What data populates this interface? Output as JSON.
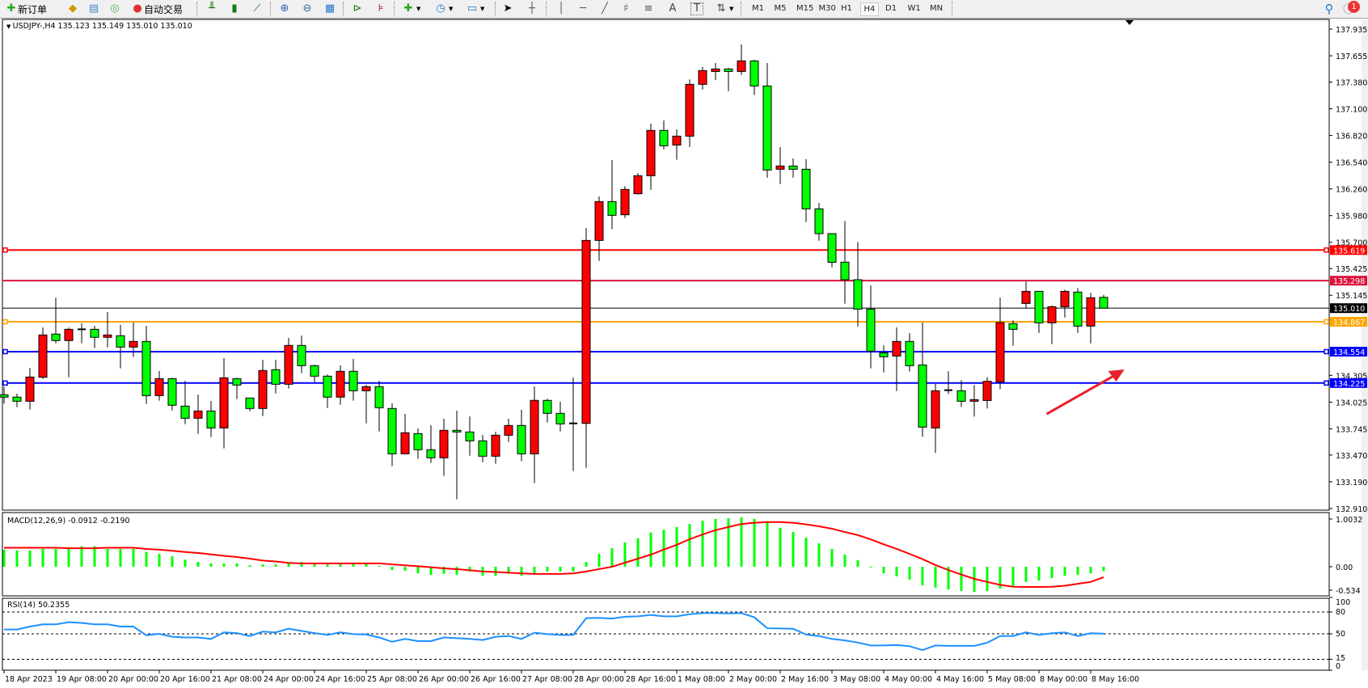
{
  "toolbar": {
    "new_order": "新订单",
    "auto_trading": "自动交易",
    "timeframes": [
      "M1",
      "M5",
      "M15",
      "M30",
      "H1",
      "H4",
      "D1",
      "W1",
      "MN"
    ],
    "selected_timeframe": "H4",
    "notification_count": "1",
    "icons": [
      "new-order-icon",
      "market-watch-icon",
      "data-window-icon",
      "signals-icon",
      "auto-trading-icon",
      "bar-chart-icon",
      "candlestick-icon",
      "line-chart-icon",
      "zoom-in-icon",
      "zoom-out-icon",
      "tile-windows-icon",
      "autoscroll-icon",
      "chart-shift-icon",
      "indicators-icon",
      "periods-icon",
      "templates-icon",
      "cursor-icon",
      "crosshair-icon",
      "vertical-line-icon",
      "horizontal-line-icon",
      "trendline-icon",
      "fibonacci-icon",
      "fibonacci-fan-icon",
      "text-icon",
      "text-label-icon",
      "arrows-icon",
      "search-icon",
      "notification-icon"
    ],
    "glyphs": {
      "text": "A",
      "label": "T"
    }
  },
  "chart": {
    "title": "USDJPY-,H4  135.123 135.149 135.010 135.010",
    "macd_label": "MACD(12,26,9) -0.0912 -0.2190",
    "rsi_label": "RSI(14) 50.2355"
  },
  "chart_data": {
    "type": "candlestick",
    "symbol": "USDJPY-",
    "timeframe": "H4",
    "colors": {
      "bull": "#ff0000",
      "bear": "#00ff00",
      "outline": "#000000",
      "macd_hist": "#00ff00",
      "signal": "#ff0000",
      "rsi": "#1e90ff"
    },
    "price_range": [
      132.91,
      137.935
    ],
    "price_ticks": [
      "137.935",
      "137.655",
      "137.380",
      "137.100",
      "136.820",
      "136.540",
      "136.260",
      "135.980",
      "135.700",
      "135.425",
      "135.145",
      "134.305",
      "134.025",
      "133.745",
      "133.470",
      "133.190",
      "132.910"
    ],
    "hlines": [
      {
        "price": "135.619",
        "color": "#ff0000",
        "handle": true
      },
      {
        "price": "135.298",
        "color": "#dc143c",
        "handle": false
      },
      {
        "price": "135.010",
        "color": "#000000",
        "handle": false
      },
      {
        "price": "134.867",
        "color": "#ffa500",
        "handle": true
      },
      {
        "price": "134.554",
        "color": "#0000ff",
        "handle": true
      },
      {
        "price": "134.225",
        "color": "#0000ff",
        "handle": true
      }
    ],
    "time_labels": [
      "18 Apr 2023",
      "19 Apr 08:00",
      "20 Apr 00:00",
      "20 Apr 16:00",
      "21 Apr 08:00",
      "24 Apr 00:00",
      "24 Apr 16:00",
      "25 Apr 08:00",
      "26 Apr 00:00",
      "26 Apr 16:00",
      "27 Apr 08:00",
      "28 Apr 00:00",
      "28 Apr 16:00",
      "1 May 08:00",
      "2 May 00:00",
      "2 May 16:00",
      "3 May 08:00",
      "4 May 00:00",
      "4 May 16:00",
      "5 May 08:00",
      "8 May 00:00",
      "8 May 16:00"
    ],
    "ohlc": [
      [
        134.102,
        134.187,
        134.009,
        134.077
      ],
      [
        134.077,
        134.113,
        133.972,
        134.034
      ],
      [
        134.034,
        134.384,
        133.947,
        134.288
      ],
      [
        134.286,
        134.808,
        134.269,
        134.729
      ],
      [
        134.738,
        135.119,
        134.642,
        134.67
      ],
      [
        134.67,
        134.808,
        134.286,
        134.788
      ],
      [
        134.788,
        134.851,
        134.642,
        134.788
      ],
      [
        134.788,
        134.825,
        134.591,
        134.704
      ],
      [
        134.704,
        134.969,
        134.599,
        134.729
      ],
      [
        134.721,
        134.834,
        134.379,
        134.602
      ],
      [
        134.602,
        134.859,
        134.497,
        134.661
      ],
      [
        134.661,
        134.825,
        134.006,
        134.093
      ],
      [
        134.093,
        134.351,
        134.04,
        134.271
      ],
      [
        134.271,
        134.28,
        133.938,
        133.992
      ],
      [
        133.983,
        134.249,
        133.794,
        133.856
      ],
      [
        133.856,
        134.105,
        133.692,
        133.932
      ],
      [
        133.932,
        134.037,
        133.658,
        133.754
      ],
      [
        133.754,
        134.486,
        133.54,
        134.28
      ],
      [
        134.271,
        134.28,
        134.057,
        134.204
      ],
      [
        134.068,
        134.068,
        133.93,
        133.958
      ],
      [
        133.958,
        134.469,
        133.879,
        134.356
      ],
      [
        134.365,
        134.469,
        134.116,
        134.212
      ],
      [
        134.212,
        134.698,
        134.167,
        134.619
      ],
      [
        134.619,
        134.723,
        134.328,
        134.407
      ],
      [
        134.407,
        134.418,
        134.235,
        134.297
      ],
      [
        134.297,
        134.314,
        133.964,
        134.077
      ],
      [
        134.077,
        134.41,
        133.997,
        134.348
      ],
      [
        134.348,
        134.478,
        134.04,
        134.144
      ],
      [
        134.144,
        134.206,
        133.803,
        134.187
      ],
      [
        134.187,
        134.249,
        133.718,
        133.966
      ],
      [
        133.958,
        134.012,
        133.353,
        133.483
      ],
      [
        133.483,
        133.901,
        133.483,
        133.704
      ],
      [
        133.695,
        133.749,
        133.43,
        133.526
      ],
      [
        133.526,
        133.783,
        133.387,
        133.441
      ],
      [
        133.441,
        133.851,
        133.252,
        133.729
      ],
      [
        133.729,
        133.935,
        133.006,
        133.712
      ],
      [
        133.712,
        133.876,
        133.463,
        133.619
      ],
      [
        133.619,
        133.681,
        133.396,
        133.458
      ],
      [
        133.458,
        133.715,
        133.379,
        133.678
      ],
      [
        133.678,
        133.851,
        133.608,
        133.78
      ],
      [
        133.78,
        133.944,
        133.404,
        133.483
      ],
      [
        133.483,
        134.189,
        133.175,
        134.043
      ],
      [
        134.043,
        134.06,
        133.811,
        133.907
      ],
      [
        133.907,
        134.028,
        133.718,
        133.797
      ],
      [
        133.802,
        134.283,
        133.303,
        133.802
      ],
      [
        133.802,
        135.85,
        133.336,
        135.72
      ],
      [
        135.72,
        136.181,
        135.506,
        136.127
      ],
      [
        136.127,
        136.562,
        135.836,
        135.983
      ],
      [
        135.989,
        136.288,
        135.955,
        136.254
      ],
      [
        136.209,
        136.426,
        136.2,
        136.398
      ],
      [
        136.398,
        136.943,
        136.251,
        136.873
      ],
      [
        136.873,
        136.977,
        136.675,
        136.712
      ],
      [
        136.72,
        136.884,
        136.565,
        136.813
      ],
      [
        136.813,
        137.407,
        136.7,
        137.356
      ],
      [
        137.356,
        137.537,
        137.302,
        137.5
      ],
      [
        137.491,
        137.579,
        137.401,
        137.517
      ],
      [
        137.517,
        137.528,
        137.285,
        137.491
      ],
      [
        137.491,
        137.774,
        137.455,
        137.602
      ],
      [
        137.602,
        137.613,
        137.243,
        137.339
      ],
      [
        137.339,
        137.579,
        136.378,
        136.458
      ],
      [
        136.466,
        136.698,
        136.311,
        136.5
      ],
      [
        136.5,
        136.579,
        136.378,
        136.466
      ],
      [
        136.466,
        136.571,
        135.912,
        136.051
      ],
      [
        136.051,
        136.113,
        135.717,
        135.791
      ],
      [
        135.791,
        135.791,
        135.438,
        135.491
      ],
      [
        135.492,
        135.924,
        135.057,
        135.308
      ],
      [
        135.308,
        135.703,
        134.819,
        135.0
      ],
      [
        135.0,
        135.246,
        134.379,
        134.559
      ],
      [
        134.542,
        134.619,
        134.336,
        134.5
      ],
      [
        134.508,
        134.808,
        134.141,
        134.661
      ],
      [
        134.661,
        134.749,
        134.345,
        134.407
      ],
      [
        134.415,
        134.859,
        133.661,
        133.763
      ],
      [
        133.754,
        134.215,
        133.492,
        134.144
      ],
      [
        134.15,
        134.348,
        134.11,
        134.15
      ],
      [
        134.144,
        134.254,
        133.975,
        134.034
      ],
      [
        134.034,
        134.203,
        133.873,
        134.051
      ],
      [
        134.042,
        134.288,
        133.958,
        134.243
      ],
      [
        134.237,
        135.119,
        134.161,
        134.859
      ],
      [
        134.847,
        134.881,
        134.616,
        134.788
      ],
      [
        135.059,
        135.288,
        135.011,
        135.186
      ],
      [
        135.186,
        135.186,
        134.751,
        134.856
      ],
      [
        134.856,
        135.04,
        134.633,
        135.025
      ],
      [
        135.025,
        135.203,
        134.912,
        135.186
      ],
      [
        135.178,
        135.22,
        134.751,
        134.822
      ],
      [
        134.822,
        135.17,
        134.641,
        135.119
      ],
      [
        135.123,
        135.149,
        135.01,
        135.01
      ]
    ],
    "macd": {
      "range": [
        -0.534,
        1.0032
      ],
      "ticks": [
        "1.0032",
        "0.00",
        "-0.534"
      ],
      "hist": [
        0.36,
        0.34,
        0.34,
        0.375,
        0.375,
        0.41,
        0.43,
        0.43,
        0.375,
        0.375,
        0.375,
        0.31,
        0.27,
        0.22,
        0.15,
        0.1,
        0.07,
        0.07,
        0.07,
        0.03,
        0.05,
        0.05,
        0.085,
        0.1,
        0.07,
        0.07,
        0.07,
        0.07,
        0.07,
        0.02,
        -0.07,
        -0.085,
        -0.14,
        -0.17,
        -0.15,
        -0.17,
        -0.1,
        -0.19,
        -0.19,
        -0.14,
        -0.19,
        -0.14,
        -0.1,
        -0.1,
        -0.1,
        0.1,
        0.27,
        0.39,
        0.51,
        0.6,
        0.72,
        0.78,
        0.835,
        0.9,
        0.97,
        1.005,
        1.02,
        1.04,
        1.005,
        0.955,
        0.82,
        0.73,
        0.61,
        0.49,
        0.375,
        0.255,
        0.14,
        0.0,
        -0.14,
        -0.2,
        -0.27,
        -0.39,
        -0.44,
        -0.48,
        -0.51,
        -0.53,
        -0.51,
        -0.46,
        -0.41,
        -0.32,
        -0.29,
        -0.24,
        -0.19,
        -0.17,
        -0.14,
        -0.0912
      ],
      "signal": [
        0.4,
        0.4,
        0.4,
        0.4,
        0.4,
        0.39,
        0.39,
        0.39,
        0.4,
        0.4,
        0.4,
        0.375,
        0.36,
        0.335,
        0.31,
        0.29,
        0.26,
        0.23,
        0.205,
        0.17,
        0.13,
        0.11,
        0.08,
        0.07,
        0.07,
        0.07,
        0.07,
        0.07,
        0.07,
        0.07,
        0.05,
        0.03,
        0.01,
        -0.01,
        -0.035,
        -0.05,
        -0.075,
        -0.1,
        -0.11,
        -0.125,
        -0.14,
        -0.15,
        -0.15,
        -0.15,
        -0.14,
        -0.1,
        -0.05,
        0.0,
        0.085,
        0.17,
        0.255,
        0.36,
        0.46,
        0.58,
        0.68,
        0.77,
        0.835,
        0.9,
        0.925,
        0.94,
        0.94,
        0.925,
        0.89,
        0.85,
        0.8,
        0.73,
        0.665,
        0.575,
        0.47,
        0.375,
        0.27,
        0.16,
        0.035,
        -0.07,
        -0.165,
        -0.255,
        -0.32,
        -0.38,
        -0.42,
        -0.425,
        -0.425,
        -0.42,
        -0.4,
        -0.36,
        -0.32,
        -0.219
      ]
    },
    "rsi": {
      "range": [
        0,
        100
      ],
      "levels": [
        80,
        50,
        15
      ],
      "ticks": [
        "100",
        "80",
        "50",
        "15",
        "0"
      ],
      "values": [
        56,
        56,
        60,
        63,
        63,
        66,
        65,
        63,
        63,
        60,
        60,
        48,
        50,
        46,
        45,
        45,
        43,
        52,
        51,
        47,
        53,
        52,
        57,
        54,
        51,
        48.5,
        52,
        49.6,
        49,
        45,
        39,
        43,
        40,
        40,
        45,
        44,
        43,
        41.5,
        46,
        47,
        43,
        51.5,
        49.6,
        48.5,
        48.5,
        71.5,
        72,
        71,
        73.5,
        74,
        76,
        74,
        74,
        77,
        78.5,
        78.5,
        78,
        78.5,
        72.7,
        57.7,
        57.3,
        57,
        49,
        47,
        43,
        41,
        38,
        34,
        34,
        34.6,
        33,
        27.7,
        34,
        33.5,
        33.5,
        33.5,
        37.7,
        47,
        47,
        52,
        48.5,
        50.8,
        52,
        47,
        50.8,
        50.2355
      ]
    },
    "arrow": {
      "color": "#e8202a",
      "from": [
        80.6,
        133.901
      ],
      "to": [
        86.6,
        134.367
      ]
    }
  }
}
